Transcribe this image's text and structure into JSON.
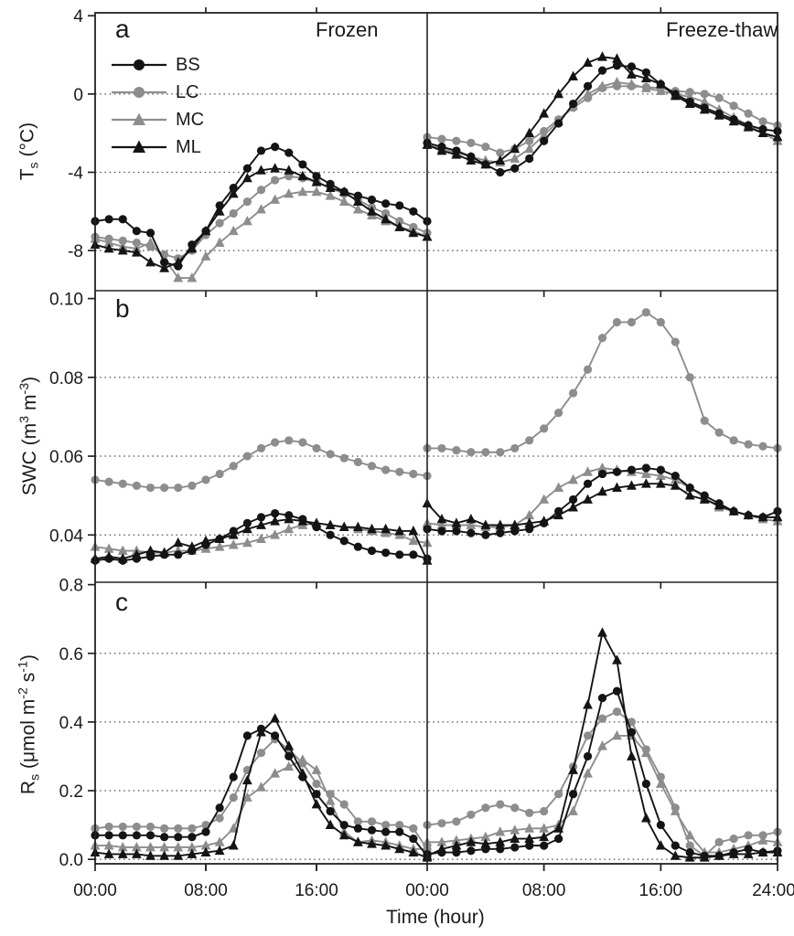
{
  "figure": {
    "legend": [
      {
        "label": "BS",
        "color": "#141414",
        "marker": "circle"
      },
      {
        "label": "LC",
        "color": "#8d8d8d",
        "marker": "circle"
      },
      {
        "label": "MC",
        "color": "#8d8d8d",
        "marker": "triangle"
      },
      {
        "label": "ML",
        "color": "#141414",
        "marker": "triangle"
      }
    ],
    "series_draw_order": [
      "LC",
      "MC",
      "BS",
      "ML"
    ]
  },
  "chart_data": {
    "type": "line",
    "xlabel": "Time (hour)",
    "column_titles": [
      "Frozen",
      "Freeze-thaw"
    ],
    "x_hours": [
      0,
      1,
      2,
      3,
      4,
      5,
      6,
      7,
      8,
      9,
      10,
      11,
      12,
      13,
      14,
      15,
      16,
      17,
      18,
      19,
      20,
      21,
      22,
      23,
      24
    ],
    "x_ticks": [
      {
        "col": 0,
        "h": 0,
        "label": "00:00"
      },
      {
        "col": 0,
        "h": 8,
        "label": "08:00"
      },
      {
        "col": 0,
        "h": 16,
        "label": "16:00"
      },
      {
        "col": 1,
        "h": 0,
        "label": "00:00"
      },
      {
        "col": 1,
        "h": 8,
        "label": "08:00"
      },
      {
        "col": 1,
        "h": 16,
        "label": "16:00"
      },
      {
        "col": 1,
        "h": 24,
        "label": "24:00"
      }
    ],
    "rows": [
      {
        "panel_letter": "a",
        "ylabel": "T~s~ (°C)",
        "ylim": [
          -10.05,
          4.15
        ],
        "yticks": [
          {
            "v": 4,
            "label": "4"
          },
          {
            "v": 0,
            "label": "0"
          },
          {
            "v": -4,
            "label": "-4"
          },
          {
            "v": -8,
            "label": "-8"
          }
        ],
        "grid": [
          0,
          -4,
          -8
        ],
        "columns": [
          {
            "condition": "Frozen",
            "series": {
              "BS": [
                -6.5,
                -6.4,
                -6.4,
                -7.0,
                -7.1,
                -8.6,
                -8.8,
                -7.7,
                -7.0,
                -5.7,
                -4.8,
                -3.8,
                -2.9,
                -2.7,
                -3.0,
                -3.6,
                -4.2,
                -4.6,
                -5.0,
                -5.2,
                -5.4,
                -5.6,
                -5.7,
                -6.0,
                -6.5
              ],
              "LC": [
                -7.3,
                -7.4,
                -7.5,
                -7.6,
                -7.8,
                -8.2,
                -8.4,
                -8.0,
                -7.2,
                -6.6,
                -6.1,
                -5.5,
                -4.9,
                -4.4,
                -4.2,
                -4.3,
                -4.5,
                -4.8,
                -5.1,
                -5.4,
                -5.8,
                -6.1,
                -6.5,
                -6.8,
                -7.1
              ],
              "MC": [
                -7.4,
                -7.6,
                -7.8,
                -7.9,
                -7.6,
                -8.4,
                -9.4,
                -9.4,
                -8.3,
                -7.6,
                -7.0,
                -6.5,
                -5.9,
                -5.4,
                -5.1,
                -5.0,
                -5.0,
                -5.2,
                -5.5,
                -5.9,
                -6.2,
                -6.5,
                -6.8,
                -7.0,
                -7.3
              ],
              "ML": [
                -7.7,
                -7.9,
                -8.0,
                -8.1,
                -8.6,
                -8.9,
                -8.6,
                -7.9,
                -7.0,
                -6.0,
                -5.1,
                -4.3,
                -3.9,
                -3.8,
                -3.9,
                -4.2,
                -4.5,
                -4.8,
                -5.0,
                -5.5,
                -6.0,
                -6.4,
                -6.8,
                -7.1,
                -7.3
              ]
            }
          },
          {
            "condition": "Freeze-thaw",
            "series": {
              "BS": [
                -2.5,
                -2.7,
                -2.9,
                -3.2,
                -3.6,
                -4.0,
                -3.8,
                -3.3,
                -2.4,
                -1.5,
                -0.5,
                0.4,
                1.2,
                1.45,
                1.4,
                1.1,
                0.5,
                0.0,
                -0.4,
                -0.7,
                -1.0,
                -1.3,
                -1.6,
                -1.8,
                -1.9
              ],
              "LC": [
                -2.2,
                -2.3,
                -2.4,
                -2.5,
                -2.7,
                -3.0,
                -2.8,
                -2.4,
                -1.9,
                -1.3,
                -0.7,
                -0.2,
                0.3,
                0.4,
                0.4,
                0.35,
                0.3,
                0.15,
                0.1,
                0.0,
                -0.2,
                -0.6,
                -1.0,
                -1.4,
                -1.6
              ],
              "MC": [
                -2.6,
                -2.8,
                -3.0,
                -3.2,
                -3.4,
                -3.5,
                -3.3,
                -2.8,
                -2.1,
                -1.4,
                -0.6,
                0.0,
                0.4,
                0.6,
                0.5,
                0.3,
                0.15,
                0.0,
                -0.15,
                -0.4,
                -0.8,
                -1.2,
                -1.6,
                -2.0,
                -2.4
              ],
              "ML": [
                -2.6,
                -2.9,
                -3.1,
                -3.4,
                -3.6,
                -3.4,
                -2.8,
                -2.0,
                -1.0,
                0.0,
                0.9,
                1.6,
                1.9,
                1.8,
                1.0,
                0.8,
                0.5,
                -0.1,
                -0.5,
                -0.8,
                -1.1,
                -1.4,
                -1.7,
                -2.0,
                -2.2
              ]
            }
          }
        ]
      },
      {
        "panel_letter": "b",
        "ylabel": "SWC (m^3^ m^-3^)",
        "ylim": [
          0.028,
          0.102
        ],
        "yticks": [
          {
            "v": 0.1,
            "label": "0.10"
          },
          {
            "v": 0.08,
            "label": "0.08"
          },
          {
            "v": 0.06,
            "label": "0.06"
          },
          {
            "v": 0.04,
            "label": "0.04"
          }
        ],
        "grid": [
          0.08,
          0.06,
          0.04
        ],
        "columns": [
          {
            "condition": "Frozen",
            "series": {
              "BS": [
                0.0335,
                0.034,
                0.0335,
                0.034,
                0.0345,
                0.035,
                0.035,
                0.036,
                0.0375,
                0.039,
                0.041,
                0.043,
                0.0445,
                0.0455,
                0.045,
                0.044,
                0.042,
                0.04,
                0.0385,
                0.037,
                0.036,
                0.0355,
                0.035,
                0.035,
                0.034
              ],
              "LC": [
                0.054,
                0.0535,
                0.053,
                0.0525,
                0.052,
                0.052,
                0.052,
                0.0525,
                0.054,
                0.0555,
                0.0575,
                0.06,
                0.062,
                0.0635,
                0.064,
                0.0635,
                0.062,
                0.0605,
                0.0595,
                0.0585,
                0.0575,
                0.0565,
                0.056,
                0.0555,
                0.055
              ],
              "MC": [
                0.037,
                0.0365,
                0.036,
                0.036,
                0.0355,
                0.0355,
                0.036,
                0.036,
                0.0365,
                0.037,
                0.0375,
                0.038,
                0.039,
                0.04,
                0.0415,
                0.0425,
                0.043,
                0.0425,
                0.042,
                0.0415,
                0.041,
                0.0405,
                0.04,
                0.0385,
                0.038
              ],
              "ML": [
                0.034,
                0.0345,
                0.034,
                0.035,
                0.036,
                0.0355,
                0.038,
                0.037,
                0.0385,
                0.039,
                0.04,
                0.0415,
                0.0425,
                0.0435,
                0.044,
                0.0435,
                0.043,
                0.0425,
                0.042,
                0.042,
                0.0415,
                0.0415,
                0.041,
                0.041,
                0.0335
              ]
            }
          },
          {
            "condition": "Freeze-thaw",
            "series": {
              "BS": [
                0.0415,
                0.041,
                0.041,
                0.0405,
                0.04,
                0.0405,
                0.041,
                0.0415,
                0.043,
                0.046,
                0.049,
                0.053,
                0.0555,
                0.056,
                0.0565,
                0.057,
                0.0565,
                0.055,
                0.052,
                0.05,
                0.048,
                0.046,
                0.045,
                0.0445,
                0.046
              ],
              "LC": [
                0.062,
                0.062,
                0.0615,
                0.061,
                0.061,
                0.061,
                0.062,
                0.064,
                0.067,
                0.071,
                0.076,
                0.082,
                0.09,
                0.094,
                0.094,
                0.0965,
                0.094,
                0.089,
                0.08,
                0.069,
                0.066,
                0.064,
                0.063,
                0.0625,
                0.062
              ],
              "MC": [
                0.043,
                0.0425,
                0.0425,
                0.0425,
                0.042,
                0.042,
                0.0425,
                0.045,
                0.049,
                0.052,
                0.054,
                0.056,
                0.057,
                0.0565,
                0.056,
                0.0555,
                0.055,
                0.054,
                0.052,
                0.0495,
                0.047,
                0.046,
                0.045,
                0.044,
                0.0435
              ],
              "ML": [
                0.048,
                0.044,
                0.043,
                0.044,
                0.0425,
                0.0425,
                0.0425,
                0.043,
                0.0435,
                0.045,
                0.047,
                0.049,
                0.051,
                0.052,
                0.0525,
                0.053,
                0.053,
                0.0525,
                0.05,
                0.049,
                0.0475,
                0.046,
                0.045,
                0.0445,
                0.0445
              ]
            }
          }
        ]
      },
      {
        "panel_letter": "c",
        "ylabel": "R~s~ (μmol m^-2^ s^-1^)",
        "ylim": [
          -0.013,
          0.807
        ],
        "yticks": [
          {
            "v": 0.8,
            "label": "0.8"
          },
          {
            "v": 0.6,
            "label": "0.6"
          },
          {
            "v": 0.4,
            "label": "0.4"
          },
          {
            "v": 0.2,
            "label": "0.2"
          },
          {
            "v": 0.0,
            "label": "0.0"
          }
        ],
        "grid": [
          0.6,
          0.4,
          0.2,
          0.0
        ],
        "columns": [
          {
            "condition": "Frozen",
            "series": {
              "BS": [
                0.07,
                0.07,
                0.07,
                0.07,
                0.07,
                0.065,
                0.065,
                0.065,
                0.08,
                0.15,
                0.24,
                0.36,
                0.38,
                0.36,
                0.3,
                0.24,
                0.19,
                0.14,
                0.1,
                0.09,
                0.085,
                0.08,
                0.08,
                0.06,
                0.01
              ],
              "LC": [
                0.09,
                0.095,
                0.095,
                0.095,
                0.095,
                0.09,
                0.09,
                0.09,
                0.1,
                0.12,
                0.18,
                0.26,
                0.31,
                0.35,
                0.32,
                0.28,
                0.22,
                0.19,
                0.16,
                0.11,
                0.11,
                0.1,
                0.1,
                0.09,
                0.03
              ],
              "MC": [
                0.04,
                0.04,
                0.035,
                0.035,
                0.035,
                0.035,
                0.035,
                0.035,
                0.04,
                0.05,
                0.09,
                0.18,
                0.21,
                0.25,
                0.27,
                0.29,
                0.26,
                0.17,
                0.08,
                0.05,
                0.055,
                0.05,
                0.04,
                0.03,
                0.03
              ],
              "ML": [
                0.02,
                0.015,
                0.015,
                0.015,
                0.01,
                0.01,
                0.01,
                0.015,
                0.02,
                0.025,
                0.04,
                0.23,
                0.37,
                0.41,
                0.33,
                0.25,
                0.16,
                0.1,
                0.07,
                0.05,
                0.045,
                0.04,
                0.03,
                0.02,
                0.005
              ]
            }
          },
          {
            "condition": "Freeze-thaw",
            "series": {
              "BS": [
                0.015,
                0.02,
                0.02,
                0.025,
                0.03,
                0.03,
                0.035,
                0.04,
                0.04,
                0.06,
                0.19,
                0.3,
                0.47,
                0.49,
                0.37,
                0.22,
                0.1,
                0.04,
                0.02,
                0.01,
                0.01,
                0.02,
                0.03,
                0.02,
                0.025
              ],
              "LC": [
                0.1,
                0.105,
                0.11,
                0.13,
                0.15,
                0.16,
                0.15,
                0.135,
                0.14,
                0.19,
                0.27,
                0.36,
                0.41,
                0.43,
                0.4,
                0.32,
                0.24,
                0.15,
                0.04,
                0.01,
                0.05,
                0.06,
                0.07,
                0.07,
                0.08
              ],
              "MC": [
                0.05,
                0.05,
                0.055,
                0.06,
                0.065,
                0.08,
                0.085,
                0.09,
                0.09,
                0.1,
                0.14,
                0.25,
                0.33,
                0.36,
                0.36,
                0.31,
                0.22,
                0.14,
                0.07,
                0.02,
                0.02,
                0.03,
                0.04,
                0.055,
                0.05
              ],
              "ML": [
                0.01,
                0.03,
                0.04,
                0.05,
                0.045,
                0.05,
                0.06,
                0.06,
                0.065,
                0.09,
                0.26,
                0.45,
                0.66,
                0.58,
                0.3,
                0.12,
                0.04,
                0.01,
                0.005,
                0.005,
                0.01,
                0.015,
                0.015,
                0.02,
                0.02
              ]
            }
          }
        ]
      }
    ]
  }
}
